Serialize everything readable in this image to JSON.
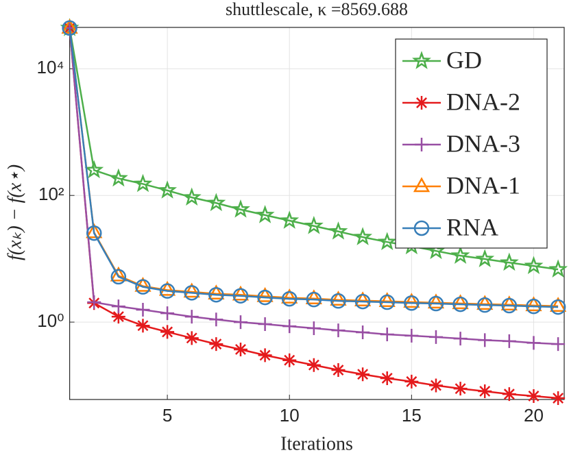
{
  "chart_data": {
    "type": "line",
    "title": "shuttlescale, κ =8569.688",
    "x_label": "Iterations",
    "y_label": "f(xₖ) − f(x⋆)",
    "x": [
      1,
      2,
      3,
      4,
      5,
      6,
      7,
      8,
      9,
      10,
      11,
      12,
      13,
      14,
      15,
      16,
      17,
      18,
      19,
      20,
      21
    ],
    "series": [
      {
        "name": "GD",
        "color": "#4daf4a",
        "marker": "star",
        "values": [
          44000,
          251,
          186,
          152,
          120,
          93,
          76,
          60,
          49,
          40,
          33,
          27,
          22,
          18.4,
          15.8,
          13.3,
          11.2,
          9.9,
          8.7,
          7.7,
          6.8
        ]
      },
      {
        "name": "DNA-2",
        "color": "#e41a1c",
        "marker": "asterisk",
        "values": [
          44000,
          2.0,
          1.22,
          0.88,
          0.7,
          0.56,
          0.45,
          0.37,
          0.3,
          0.25,
          0.21,
          0.175,
          0.15,
          0.13,
          0.115,
          0.1,
          0.089,
          0.081,
          0.073,
          0.068,
          0.063
        ]
      },
      {
        "name": "DNA-3",
        "color": "#984ea3",
        "marker": "plus",
        "values": [
          44000,
          2.06,
          1.77,
          1.57,
          1.38,
          1.22,
          1.1,
          1.0,
          0.93,
          0.86,
          0.8,
          0.74,
          0.69,
          0.64,
          0.61,
          0.58,
          0.55,
          0.52,
          0.5,
          0.47,
          0.45
        ]
      },
      {
        "name": "DNA-1",
        "color": "#ff7f00",
        "marker": "triangle",
        "values": [
          44000,
          26,
          5.4,
          3.7,
          3.2,
          3.0,
          2.8,
          2.7,
          2.55,
          2.42,
          2.35,
          2.24,
          2.18,
          2.13,
          2.07,
          2.02,
          1.97,
          1.92,
          1.88,
          1.83,
          1.79
        ]
      },
      {
        "name": "RNA",
        "color": "#377eb8",
        "marker": "circle",
        "values": [
          44000,
          25.4,
          5.2,
          3.6,
          3.1,
          2.9,
          2.7,
          2.6,
          2.45,
          2.33,
          2.27,
          2.16,
          2.11,
          2.06,
          2.0,
          1.96,
          1.91,
          1.86,
          1.82,
          1.77,
          1.73
        ]
      }
    ],
    "xlim": [
      1,
      21.25
    ],
    "xticks": [
      5,
      10,
      15,
      20
    ],
    "ylim": [
      0.06,
      45000
    ],
    "log_y": true,
    "yticks": [
      {
        "value": 1,
        "label": "10⁰"
      },
      {
        "value": 100,
        "label": "10²"
      },
      {
        "value": 10000,
        "label": "10⁴"
      }
    ],
    "grid": true,
    "legend_position": "upper right"
  }
}
